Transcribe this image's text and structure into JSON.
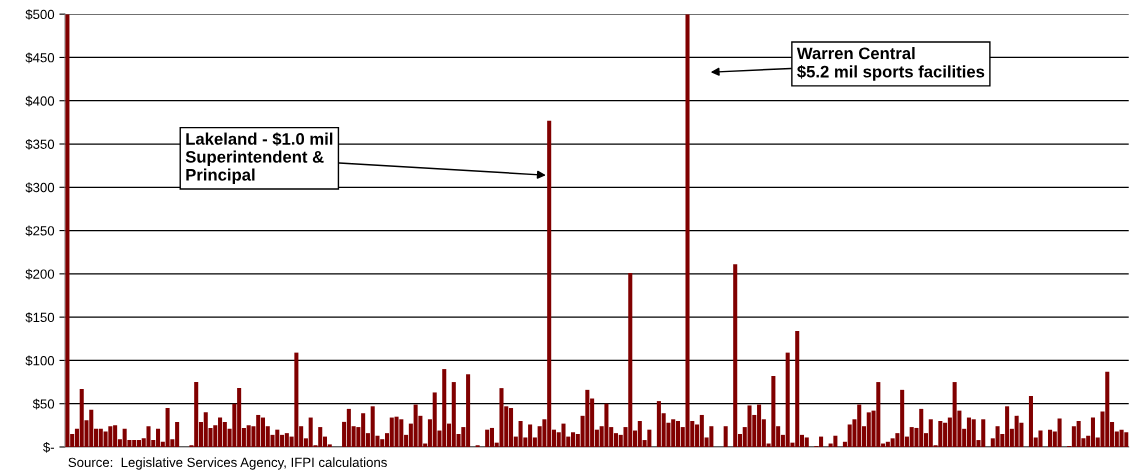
{
  "chart_data": {
    "type": "bar",
    "color": "#800000",
    "grid": "y",
    "categories": [
      null,
      null,
      null,
      null,
      null,
      null,
      null,
      null,
      null,
      null,
      null,
      null,
      null,
      null,
      null,
      null,
      null,
      null,
      null,
      null,
      null,
      null,
      null,
      null,
      null,
      null,
      null,
      null,
      null,
      null,
      null,
      null,
      null,
      null,
      null,
      null,
      null,
      null,
      null,
      null,
      null,
      null,
      null,
      null,
      null,
      null,
      null,
      null,
      null,
      null,
      null,
      null,
      null,
      null,
      null,
      null,
      null,
      null,
      null,
      null,
      null,
      null,
      null,
      null,
      null,
      null,
      null,
      null,
      null,
      null,
      null,
      null,
      null,
      null,
      null,
      null,
      null,
      null,
      null,
      null,
      null,
      null,
      null,
      null,
      null,
      null,
      null,
      null,
      null,
      null,
      null,
      null,
      null,
      null,
      null,
      null,
      null,
      null,
      null,
      null,
      null,
      null,
      null,
      null,
      null,
      null,
      null,
      null,
      null,
      null,
      null,
      null,
      null,
      null,
      null,
      null,
      null,
      null,
      null,
      null,
      null,
      null,
      null,
      null,
      null,
      null,
      null,
      null,
      null,
      null,
      null,
      null,
      null,
      null,
      null,
      null,
      null,
      null,
      null,
      null,
      null,
      null,
      null,
      null,
      null,
      null,
      null,
      null,
      null,
      null,
      null,
      null,
      null,
      null,
      null,
      null,
      null,
      null,
      null,
      null,
      null,
      null,
      null,
      null,
      null,
      null,
      null,
      null,
      null,
      null,
      null,
      null,
      null,
      null,
      null,
      null,
      null,
      null,
      null,
      null,
      null,
      null,
      null,
      null,
      null,
      null,
      null,
      null,
      null,
      null,
      null,
      null,
      null,
      null,
      null,
      null,
      null,
      null,
      null,
      null,
      null,
      null,
      null,
      null,
      null,
      null,
      null,
      null,
      null,
      null,
      null,
      null,
      null,
      null,
      null,
      null,
      null,
      null,
      null,
      null,
      null,
      null,
      null
    ],
    "values": [
      500,
      15,
      21,
      67,
      31,
      43,
      21,
      21,
      18,
      24,
      25,
      9,
      21,
      8,
      8,
      8,
      10,
      24,
      8,
      21,
      6,
      45,
      9,
      29,
      0,
      0,
      2,
      75,
      29,
      40,
      22,
      25,
      34,
      29,
      21,
      50,
      68,
      22,
      25,
      24,
      37,
      34,
      24,
      14,
      20,
      14,
      16,
      12,
      109,
      24,
      10,
      34,
      2,
      23,
      12,
      3,
      0,
      0,
      29,
      44,
      24,
      23,
      39,
      16,
      47,
      13,
      9,
      16,
      34,
      35,
      32,
      14,
      27,
      49,
      36,
      4,
      32,
      63,
      19,
      90,
      27,
      75,
      15,
      23,
      84,
      0,
      2,
      0,
      20,
      22,
      5,
      68,
      47,
      45,
      12,
      30,
      11,
      26,
      11,
      24,
      32,
      377,
      20,
      17,
      27,
      12,
      17,
      15,
      36,
      66,
      56,
      20,
      24,
      50,
      23,
      16,
      14,
      23,
      201,
      19,
      30,
      8,
      20,
      0,
      53,
      39,
      28,
      32,
      30,
      23,
      500,
      30,
      26,
      37,
      11,
      24,
      0,
      0,
      24,
      0,
      211,
      15,
      23,
      48,
      37,
      49,
      32,
      4,
      82,
      24,
      14,
      109,
      5,
      134,
      14,
      11,
      0,
      1,
      12,
      0,
      4,
      13,
      0,
      6,
      26,
      32,
      49,
      24,
      40,
      42,
      75,
      4,
      6,
      10,
      16,
      66,
      12,
      23,
      22,
      44,
      16,
      32,
      2,
      30,
      28,
      34,
      75,
      42,
      21,
      34,
      32,
      8,
      32,
      0,
      10,
      24,
      15,
      47,
      21,
      36,
      28,
      0,
      59,
      11,
      19,
      0,
      20,
      18,
      33,
      0,
      1,
      24,
      30,
      10,
      13,
      34,
      11,
      41,
      87,
      29,
      18,
      20,
      17
    ],
    "ylim": [
      0,
      500
    ],
    "yticks": [
      {
        "value": 0,
        "label": "$-"
      },
      {
        "value": 50,
        "label": "$50"
      },
      {
        "value": 100,
        "label": "$100"
      },
      {
        "value": 150,
        "label": "$150"
      },
      {
        "value": 200,
        "label": "$200"
      },
      {
        "value": 250,
        "label": "$250"
      },
      {
        "value": 300,
        "label": "$300"
      },
      {
        "value": 350,
        "label": "$350"
      },
      {
        "value": 400,
        "label": "$400"
      },
      {
        "value": 450,
        "label": "$450"
      },
      {
        "value": 500,
        "label": "$500"
      }
    ],
    "tick_labels": "y",
    "annotations": [
      "Lakeland - $1.0 mil\nSuperintendent &\nPrincipal",
      "Warren Central\n$5.2 mil sports facilities",
      "Source:  Legislative Services Agency, IFPI calculations"
    ]
  }
}
